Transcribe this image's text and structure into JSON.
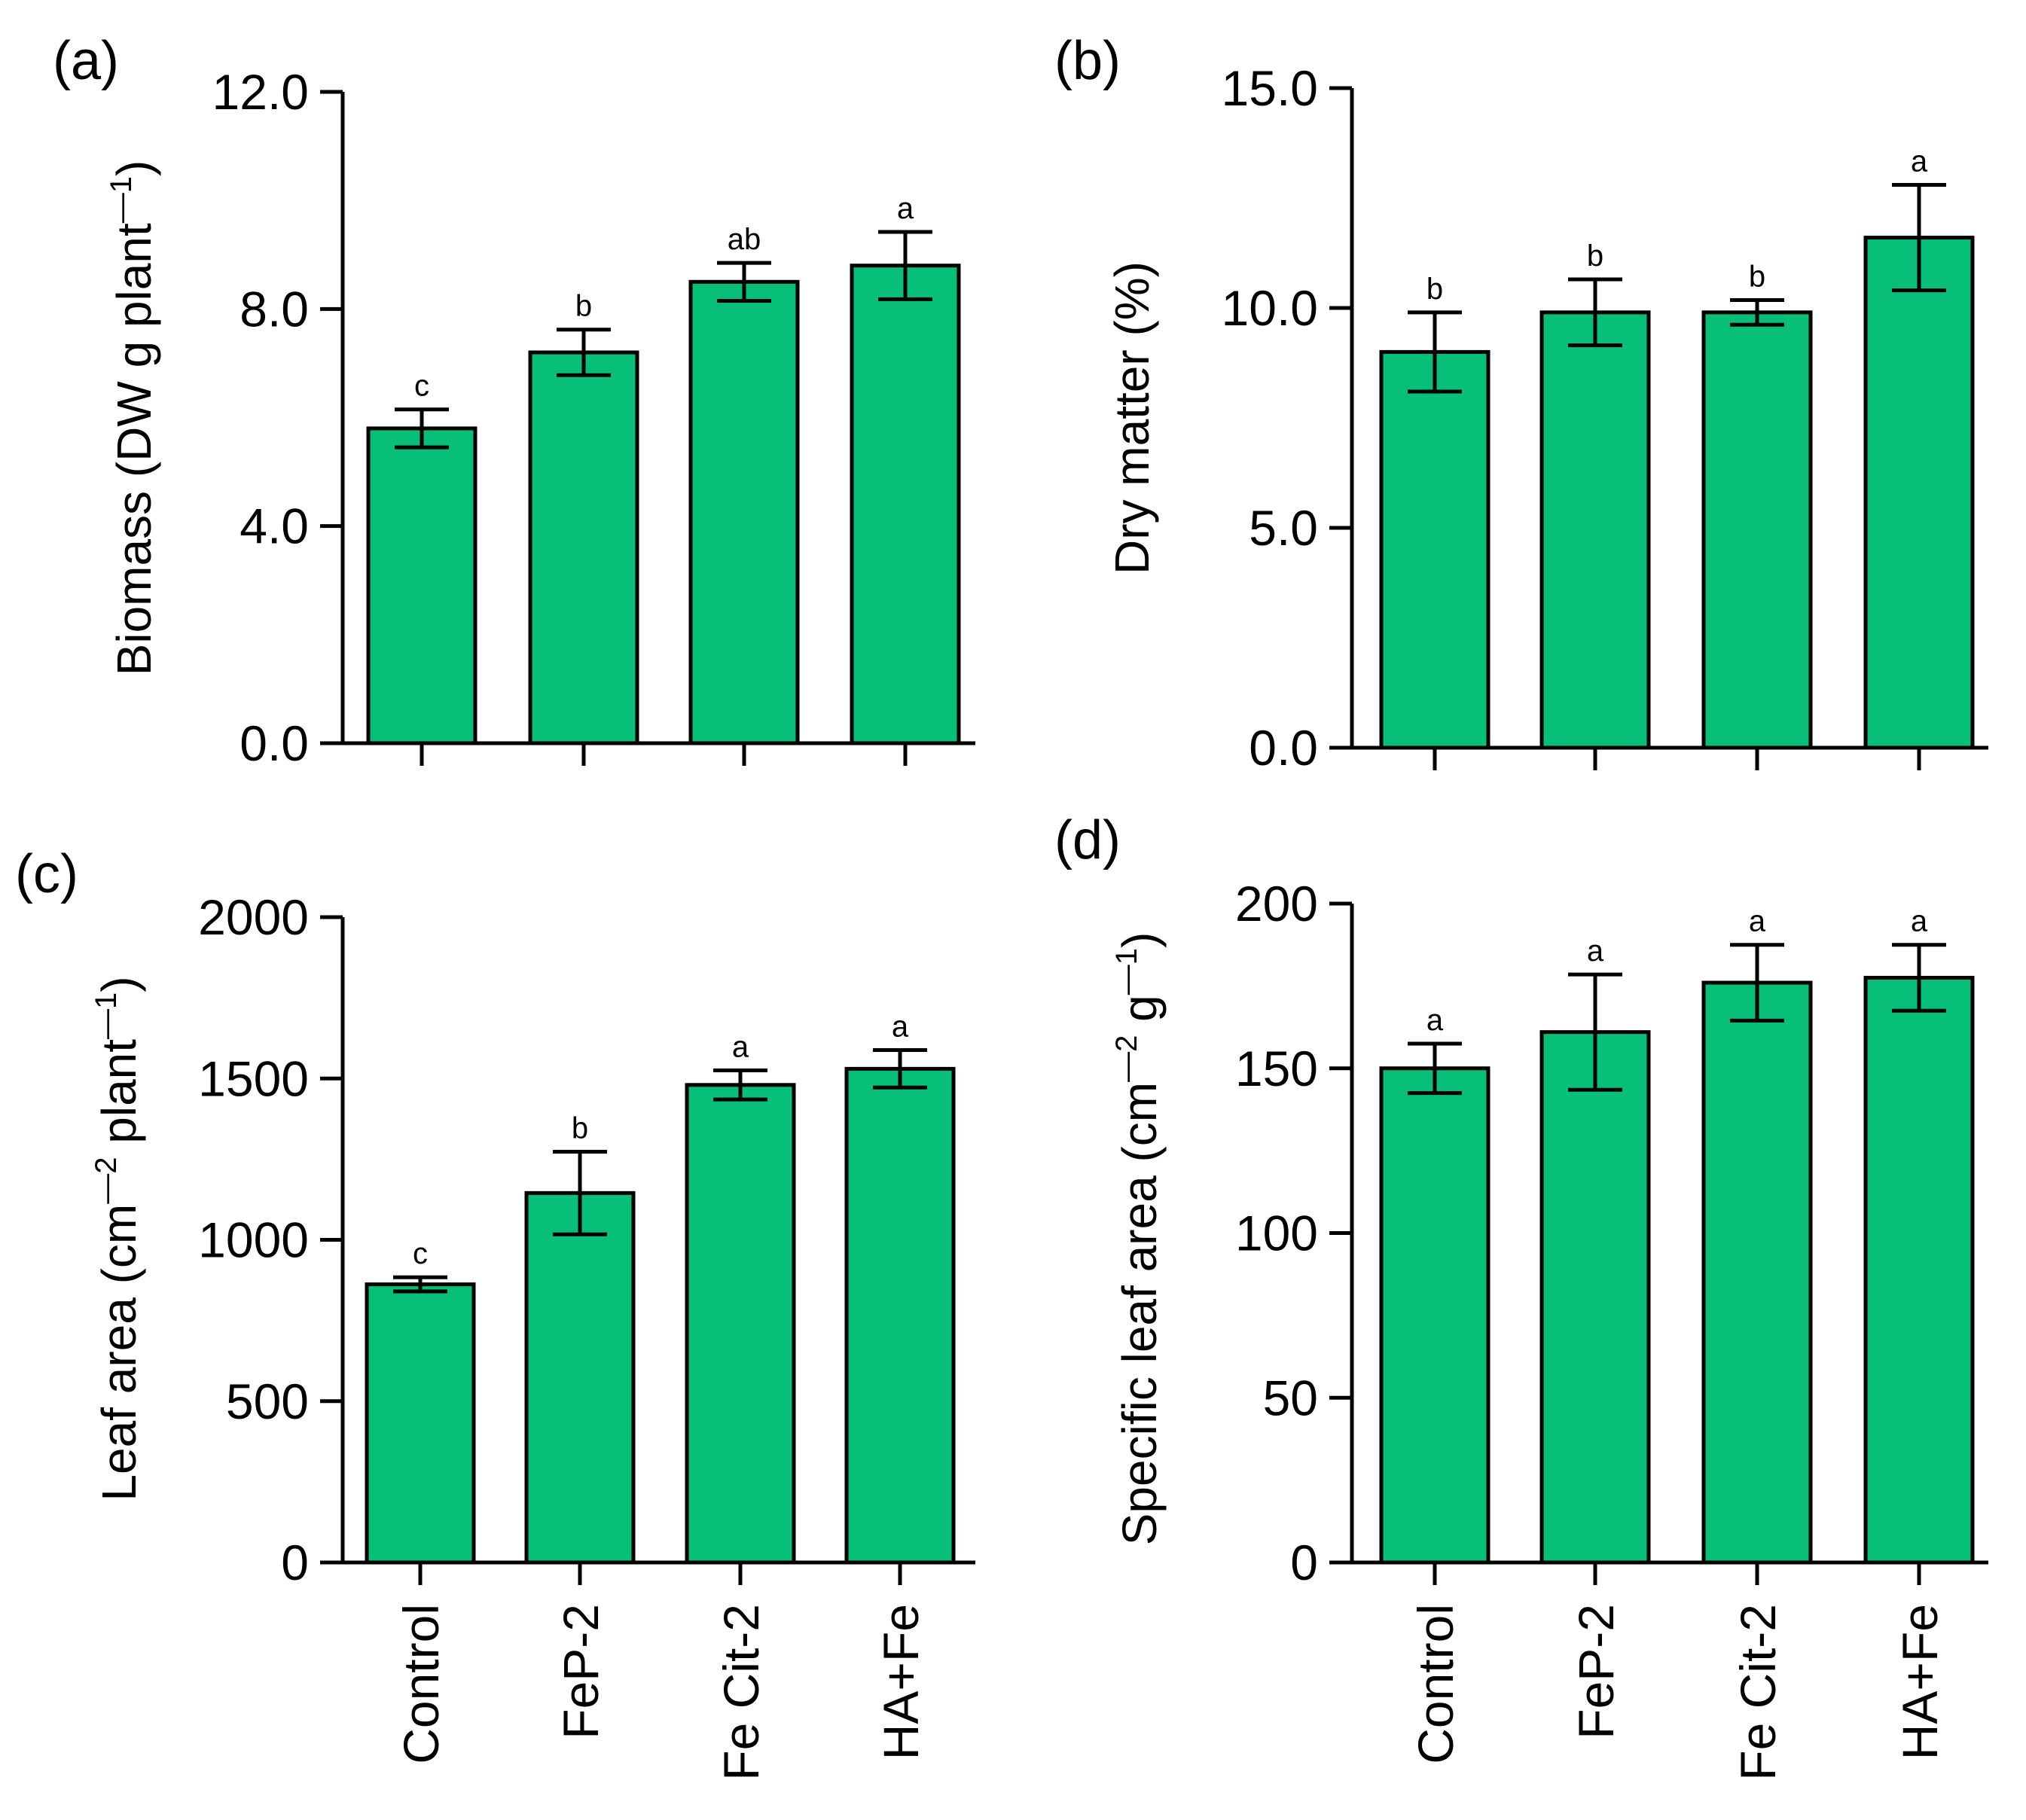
{
  "bar_color": "#07BF78",
  "categories": [
    "Control",
    "FeP-2",
    "Fe Cit-2",
    "HA+Fe"
  ],
  "chart_data": [
    {
      "type": "bar",
      "panel": "(a)",
      "ylabel": "Biomass (DW g plant",
      "ylabel_sup": "—1",
      "ylabel_tail": ")",
      "ylim": [
        0,
        12
      ],
      "yticks": [
        0,
        4,
        8,
        12
      ],
      "ytick_labels": [
        "0.0",
        "4.0",
        "8.0",
        "12.0"
      ],
      "categories": [
        "Control",
        "FeP-2",
        "Fe Cit-2",
        "HA+Fe"
      ],
      "values": [
        5.8,
        7.2,
        8.5,
        8.8
      ],
      "errors": [
        0.35,
        0.42,
        0.35,
        0.62
      ],
      "significance": [
        "c",
        "b",
        "ab",
        "a"
      ],
      "show_category_labels": false
    },
    {
      "type": "bar",
      "panel": "(b)",
      "ylabel": "Dry matter (%)",
      "ylabel_sup": "",
      "ylabel_tail": "",
      "ylim": [
        0,
        15
      ],
      "yticks": [
        0,
        5,
        10,
        15
      ],
      "ytick_labels": [
        "0.0",
        "5.0",
        "10.0",
        "15.0"
      ],
      "categories": [
        "Control",
        "FeP-2",
        "Fe Cit-2",
        "HA+Fe"
      ],
      "values": [
        9.0,
        9.9,
        9.9,
        11.6
      ],
      "errors": [
        0.9,
        0.75,
        0.28,
        1.2
      ],
      "significance": [
        "b",
        "b",
        "b",
        "a"
      ],
      "show_category_labels": false
    },
    {
      "type": "bar",
      "panel": "(c)",
      "ylabel": "Leaf area (cm",
      "ylabel_sup": "—2",
      "ylabel_mid": " plant",
      "ylabel_sup2": "—1",
      "ylabel_tail": ")",
      "ylim": [
        0,
        2000
      ],
      "yticks": [
        0,
        500,
        1000,
        1500,
        2000
      ],
      "ytick_labels": [
        "0",
        "500",
        "1000",
        "1500",
        "2000"
      ],
      "categories": [
        "Control",
        "FeP-2",
        "Fe Cit-2",
        "HA+Fe"
      ],
      "values": [
        862,
        1145,
        1480,
        1530
      ],
      "errors": [
        22,
        128,
        45,
        58
      ],
      "significance": [
        "c",
        "b",
        "a",
        "a"
      ],
      "show_category_labels": true
    },
    {
      "type": "bar",
      "panel": "(d)",
      "ylabel": "Specific leaf area (cm",
      "ylabel_sup": "—2",
      "ylabel_mid": " g",
      "ylabel_sup2": "—1",
      "ylabel_tail": ")",
      "ylim": [
        0,
        200
      ],
      "yticks": [
        0,
        50,
        100,
        150,
        200
      ],
      "ytick_labels": [
        "0",
        "50",
        "100",
        "150",
        "200"
      ],
      "categories": [
        "Control",
        "FeP-2",
        "Fe Cit-2",
        "HA+Fe"
      ],
      "values": [
        150,
        161,
        176,
        177.5
      ],
      "errors": [
        7.5,
        17.5,
        11.5,
        10
      ],
      "significance": [
        "a",
        "a",
        "a",
        "a"
      ],
      "show_category_labels": true
    }
  ]
}
